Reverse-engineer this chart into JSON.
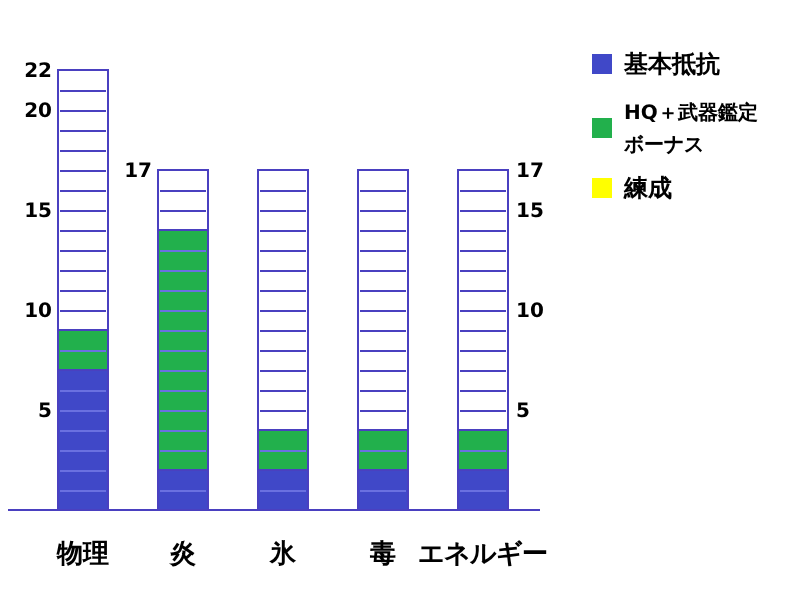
{
  "chart_data": {
    "type": "bar",
    "stacked": true,
    "categories": [
      "物理",
      "炎",
      "氷",
      "毒",
      "エネルギー"
    ],
    "series": [
      {
        "name": "基本抵抗",
        "color": "#4048c8",
        "values": [
          7,
          2,
          2,
          2,
          2
        ]
      },
      {
        "name": "HQ＋武器鑑定ボーナス",
        "color": "#22b04c",
        "values": [
          2,
          12,
          2,
          2,
          2
        ]
      },
      {
        "name": "練成",
        "color": "#ffff00",
        "values": [
          0,
          0,
          0,
          0,
          0
        ]
      },
      {
        "color": "#ffffff",
        "values": [
          13,
          3,
          13,
          13,
          13
        ]
      }
    ],
    "ylim": [
      0,
      22
    ],
    "yticks": [
      5,
      10,
      15,
      20,
      22
    ],
    "y2lim": [
      0,
      22
    ],
    "y2ticks": [
      5,
      10,
      15,
      17
    ],
    "annotations": [
      {
        "text": "17",
        "x": "炎",
        "y": 17
      }
    ],
    "legend": "top right",
    "grid": false
  }
}
